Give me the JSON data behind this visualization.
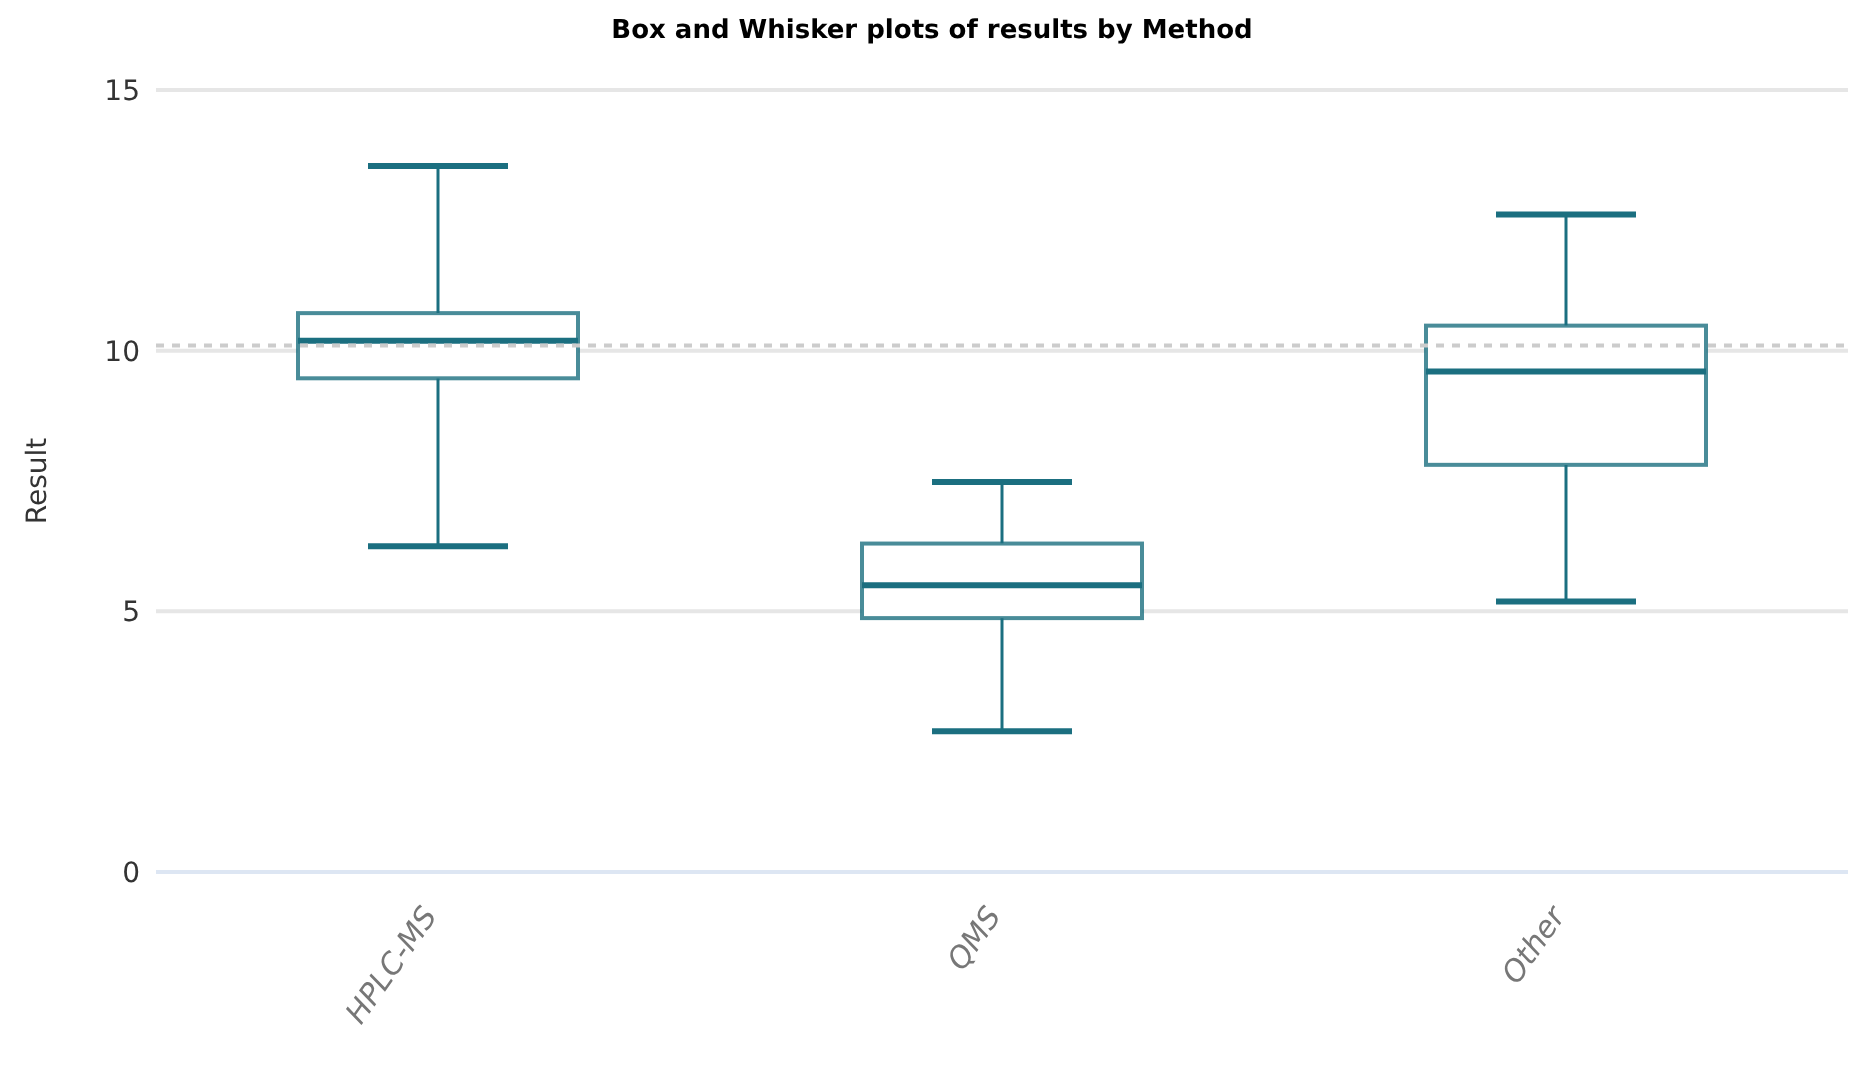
{
  "chart_data": {
    "type": "box",
    "title": "Box and Whisker plots of results by Method",
    "ylabel": "Result",
    "categories": [
      "HPLC-MS",
      "QMS",
      "Other"
    ],
    "series": [
      {
        "color": "#1b6f80",
        "boxes": [
          {
            "low": 6.25,
            "q1": 9.47,
            "median": 10.19,
            "q3": 10.72,
            "high": 13.54
          },
          {
            "low": 2.7,
            "q1": 4.87,
            "median": 5.5,
            "q3": 6.3,
            "high": 7.48
          },
          {
            "low": 5.19,
            "q1": 7.81,
            "median": 9.6,
            "q3": 10.48,
            "high": 12.61
          }
        ]
      }
    ],
    "ylim": [
      0,
      15
    ],
    "yticks": [
      0,
      5,
      10,
      15
    ],
    "grid": "y",
    "legend": false,
    "ref_lines": [
      {
        "axis": "y",
        "value": 10.1,
        "color": "#cccccc",
        "line_style": "dashed"
      }
    ]
  }
}
